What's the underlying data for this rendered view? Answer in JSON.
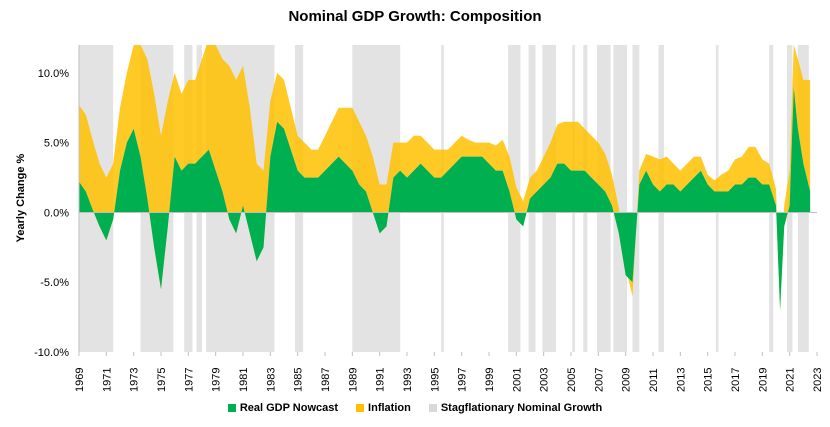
{
  "chart_data": {
    "type": "area",
    "title": "Nominal GDP Growth: Composition",
    "ylabel": "Yearly Change %",
    "xlabel": "",
    "xlim": [
      1969.0,
      2023.0
    ],
    "ylim": [
      -10,
      12
    ],
    "y_ticks": [
      {
        "value": 10,
        "label": "10.0%"
      },
      {
        "value": 5,
        "label": "5.0%"
      },
      {
        "value": 0,
        "label": "0.0%"
      },
      {
        "value": -5,
        "label": "-5.0%"
      },
      {
        "value": -10,
        "label": "-10.0%"
      }
    ],
    "x_ticks": [
      "1969",
      "1971",
      "1973",
      "1975",
      "1977",
      "1979",
      "1981",
      "1983",
      "1985",
      "1987",
      "1989",
      "1991",
      "1993",
      "1995",
      "1997",
      "1999",
      "2001",
      "2003",
      "2005",
      "2007",
      "2009",
      "2011",
      "2013",
      "2015",
      "2017",
      "2019",
      "2021",
      "2023"
    ],
    "legend_position": "bottom",
    "colors": {
      "real": "#00b050",
      "inflation": "#ffc000",
      "stag": "#d9d9d9"
    },
    "series": [
      {
        "name": "Real GDP Nowcast",
        "x": [
          1969.0,
          1969.5,
          1970.0,
          1970.5,
          1971.0,
          1971.5,
          1972.0,
          1972.5,
          1973.0,
          1973.5,
          1974.0,
          1974.5,
          1975.0,
          1975.5,
          1976.0,
          1976.5,
          1977.0,
          1977.5,
          1978.0,
          1978.5,
          1979.0,
          1979.5,
          1980.0,
          1980.5,
          1981.0,
          1981.5,
          1982.0,
          1982.5,
          1983.0,
          1983.5,
          1984.0,
          1984.5,
          1985.0,
          1985.5,
          1986.0,
          1986.5,
          1987.0,
          1987.5,
          1988.0,
          1988.5,
          1989.0,
          1989.5,
          1990.0,
          1990.5,
          1991.0,
          1991.5,
          1992.0,
          1992.5,
          1993.0,
          1993.5,
          1994.0,
          1994.5,
          1995.0,
          1995.5,
          1996.0,
          1996.5,
          1997.0,
          1997.5,
          1998.0,
          1998.5,
          1999.0,
          1999.5,
          2000.0,
          2000.5,
          2001.0,
          2001.5,
          2002.0,
          2002.5,
          2003.0,
          2003.5,
          2004.0,
          2004.5,
          2005.0,
          2005.5,
          2006.0,
          2006.5,
          2007.0,
          2007.5,
          2008.0,
          2008.5,
          2009.0,
          2009.5,
          2010.0,
          2010.5,
          2011.0,
          2011.5,
          2012.0,
          2012.5,
          2013.0,
          2013.5,
          2014.0,
          2014.5,
          2015.0,
          2015.5,
          2016.0,
          2016.5,
          2017.0,
          2017.5,
          2018.0,
          2018.5,
          2019.0,
          2019.5,
          2020.0,
          2020.3,
          2020.6,
          2021.0,
          2021.3,
          2021.6,
          2022.0,
          2022.5
        ],
        "values": [
          2.2,
          1.5,
          0.2,
          -1.0,
          -2.0,
          -0.5,
          3.0,
          5.0,
          6.0,
          4.0,
          1.0,
          -2.5,
          -5.5,
          -1.0,
          4.0,
          3.0,
          3.5,
          3.5,
          4.0,
          4.5,
          3.0,
          1.5,
          -0.5,
          -1.5,
          0.5,
          -1.5,
          -3.5,
          -2.5,
          4.0,
          6.5,
          6.0,
          4.5,
          3.0,
          2.5,
          2.5,
          2.5,
          3.0,
          3.5,
          4.0,
          3.5,
          3.0,
          2.0,
          1.5,
          0.0,
          -1.5,
          -1.0,
          2.5,
          3.0,
          2.5,
          3.0,
          3.5,
          3.0,
          2.5,
          2.5,
          3.0,
          3.5,
          4.0,
          4.0,
          4.0,
          4.0,
          3.5,
          3.0,
          3.0,
          1.5,
          -0.5,
          -1.0,
          1.0,
          1.5,
          2.0,
          2.5,
          3.5,
          3.5,
          3.0,
          3.0,
          3.0,
          2.5,
          2.0,
          1.5,
          0.5,
          -1.5,
          -4.5,
          -5.0,
          2.0,
          3.0,
          2.0,
          1.5,
          2.0,
          2.0,
          1.5,
          2.0,
          2.5,
          3.0,
          2.0,
          1.5,
          1.5,
          1.5,
          2.0,
          2.0,
          2.5,
          2.5,
          2.0,
          2.0,
          0.5,
          -7.0,
          -1.0,
          0.5,
          9.0,
          6.0,
          3.5,
          1.5
        ]
      },
      {
        "name": "Inflation",
        "x": [
          1969.0,
          1969.5,
          1970.0,
          1970.5,
          1971.0,
          1971.5,
          1972.0,
          1972.5,
          1973.0,
          1973.5,
          1974.0,
          1974.5,
          1975.0,
          1975.5,
          1976.0,
          1976.5,
          1977.0,
          1977.5,
          1978.0,
          1978.5,
          1979.0,
          1979.5,
          1980.0,
          1980.5,
          1981.0,
          1981.5,
          1982.0,
          1982.5,
          1983.0,
          1983.5,
          1984.0,
          1984.5,
          1985.0,
          1985.5,
          1986.0,
          1986.5,
          1987.0,
          1987.5,
          1988.0,
          1988.5,
          1989.0,
          1989.5,
          1990.0,
          1990.5,
          1991.0,
          1991.5,
          1992.0,
          1992.5,
          1993.0,
          1993.5,
          1994.0,
          1994.5,
          1995.0,
          1995.5,
          1996.0,
          1996.5,
          1997.0,
          1997.5,
          1998.0,
          1998.5,
          1999.0,
          1999.5,
          2000.0,
          2000.5,
          2001.0,
          2001.5,
          2002.0,
          2002.5,
          2003.0,
          2003.5,
          2004.0,
          2004.5,
          2005.0,
          2005.5,
          2006.0,
          2006.5,
          2007.0,
          2007.5,
          2008.0,
          2008.5,
          2009.0,
          2009.5,
          2010.0,
          2010.5,
          2011.0,
          2011.5,
          2012.0,
          2012.5,
          2013.0,
          2013.5,
          2014.0,
          2014.5,
          2015.0,
          2015.5,
          2016.0,
          2016.5,
          2017.0,
          2017.5,
          2018.0,
          2018.5,
          2019.0,
          2019.5,
          2020.0,
          2020.3,
          2020.6,
          2021.0,
          2021.3,
          2021.6,
          2022.0,
          2022.5
        ],
        "values": [
          5.5,
          5.5,
          5.0,
          4.5,
          4.5,
          4.0,
          4.5,
          5.0,
          6.0,
          8.0,
          10.0,
          11.0,
          11.0,
          9.0,
          6.0,
          5.5,
          6.0,
          6.0,
          7.0,
          8.0,
          9.0,
          9.5,
          11.0,
          11.0,
          10.0,
          9.0,
          7.0,
          5.5,
          4.0,
          3.5,
          3.5,
          3.0,
          2.5,
          2.5,
          2.0,
          2.0,
          2.5,
          3.0,
          3.5,
          4.0,
          4.5,
          4.5,
          4.0,
          4.0,
          3.5,
          3.0,
          2.5,
          2.0,
          2.5,
          2.5,
          2.0,
          2.0,
          2.0,
          2.0,
          1.5,
          1.5,
          1.5,
          1.2,
          1.0,
          1.0,
          1.5,
          1.8,
          2.2,
          2.5,
          2.3,
          1.8,
          1.5,
          1.5,
          2.0,
          2.5,
          2.8,
          3.0,
          3.5,
          3.5,
          3.0,
          3.0,
          3.0,
          2.7,
          2.2,
          1.8,
          0.5,
          -1.0,
          1.0,
          1.2,
          2.0,
          2.3,
          2.0,
          1.5,
          1.5,
          1.5,
          1.5,
          1.0,
          0.7,
          0.8,
          1.2,
          1.5,
          1.8,
          2.0,
          2.2,
          2.2,
          1.8,
          1.5,
          1.2,
          0.8,
          1.5,
          2.5,
          3.0,
          5.0,
          6.0,
          8.0
        ]
      }
    ],
    "shaded_regions_name": "Stagflationary Nominal Growth",
    "shaded_regions": [
      [
        1969.0,
        1971.5
      ],
      [
        1973.5,
        1975.9
      ],
      [
        1976.7,
        1977.3
      ],
      [
        1977.6,
        1978.0
      ],
      [
        1978.3,
        1983.3
      ],
      [
        1984.8,
        1985.4
      ],
      [
        1989.0,
        1992.5
      ],
      [
        1995.5,
        1995.7
      ],
      [
        2000.4,
        2001.3
      ],
      [
        2001.9,
        2002.4
      ],
      [
        2002.9,
        2003.9
      ],
      [
        2005.1,
        2005.3
      ],
      [
        2005.9,
        2006.2
      ],
      [
        2006.9,
        2007.9
      ],
      [
        2008.1,
        2009.1
      ],
      [
        2009.5,
        2010.0
      ],
      [
        2011.4,
        2011.8
      ],
      [
        2015.6,
        2015.8
      ],
      [
        2019.5,
        2019.8
      ],
      [
        2020.8,
        2021.2
      ],
      [
        2021.6,
        2022.4
      ]
    ]
  }
}
